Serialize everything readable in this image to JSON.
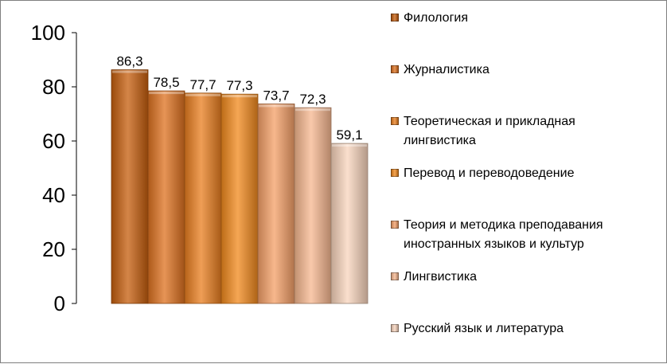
{
  "chart_data": {
    "type": "bar",
    "title": "",
    "xlabel": "",
    "ylabel": "",
    "ylim": [
      0,
      100
    ],
    "yticks": [
      "0",
      "20",
      "40",
      "60",
      "80",
      "100"
    ],
    "legend_position": "right",
    "grid": false,
    "series": [
      {
        "name": "Филология",
        "value": 86.3,
        "label": "86,3",
        "color": "#c65f0e"
      },
      {
        "name": "Журналистика",
        "value": 78.5,
        "label": "78,5",
        "color": "#de7220"
      },
      {
        "name": "Теоретическая и прикладная\nлингвистика",
        "value": 77.7,
        "label": "77,7",
        "color": "#ea7f20"
      },
      {
        "name": "Перевод и переводоведение",
        "value": 77.3,
        "label": "77,3",
        "color": "#f28a1e"
      },
      {
        "name": "Теория и  методика преподавания\nиностранных языков и культур",
        "value": 73.7,
        "label": "73,7",
        "color": "#f5a068"
      },
      {
        "name": "Лингвистика",
        "value": 72.3,
        "label": "72,3",
        "color": "#f7b890"
      },
      {
        "name": "Русский язык и литература",
        "value": 59.1,
        "label": "59,1",
        "color": "#f9d5bd"
      }
    ]
  }
}
